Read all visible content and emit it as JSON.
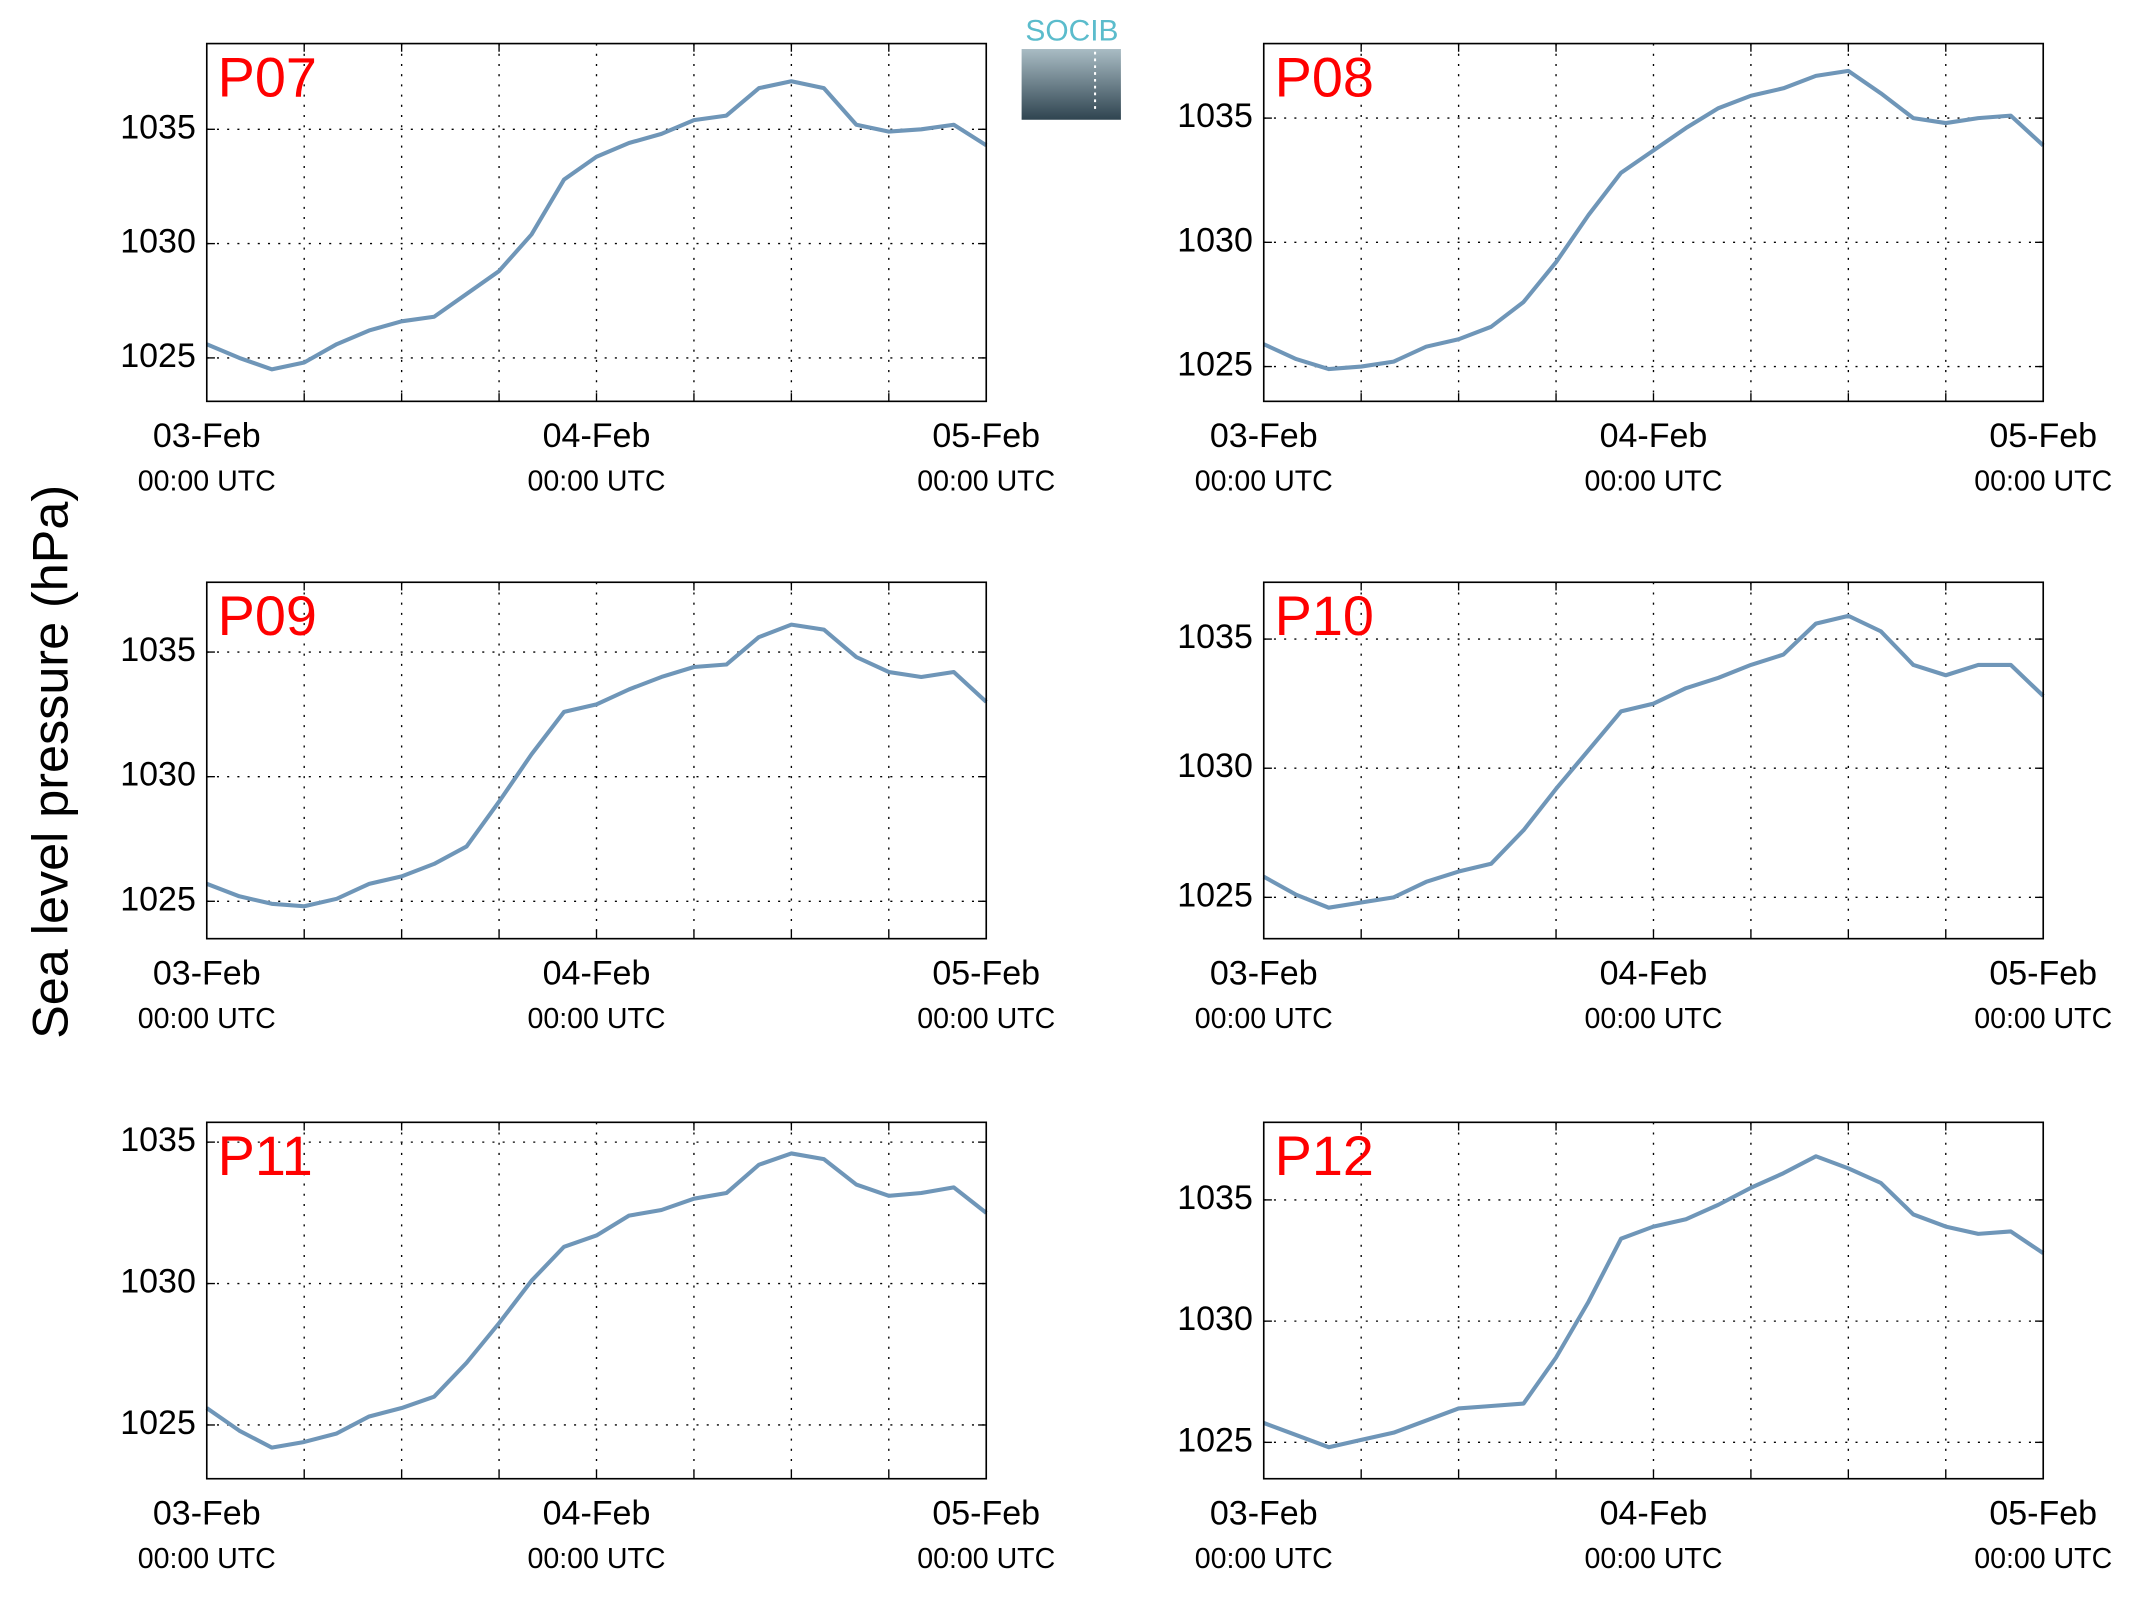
{
  "ylabel": "Sea level pressure (hPa)",
  "logo": "SOCIB",
  "chart_data": [
    {
      "type": "line",
      "title": "P07",
      "color": "#6f96b8",
      "x": [
        0,
        2,
        4,
        6,
        8,
        10,
        12,
        14,
        16,
        18,
        20,
        22,
        24,
        26,
        28,
        30,
        32,
        34,
        36,
        38,
        40,
        42,
        44,
        46,
        48
      ],
      "values": [
        1025.6,
        1025.0,
        1024.5,
        1024.8,
        1025.6,
        1026.2,
        1026.6,
        1026.8,
        1027.8,
        1028.8,
        1030.4,
        1032.8,
        1033.8,
        1034.4,
        1034.8,
        1035.4,
        1035.6,
        1036.8,
        1037.1,
        1036.8,
        1035.2,
        1034.9,
        1035.0,
        1035.2,
        1034.3
      ],
      "xlim": [
        0,
        48
      ],
      "ylim": [
        1023.1,
        1038.75
      ],
      "xticks": [
        {
          "value": 0,
          "label": [
            "03-Feb",
            "00:00 UTC"
          ]
        },
        {
          "value": 24,
          "label": [
            "04-Feb",
            "00:00 UTC"
          ]
        },
        {
          "value": 48,
          "label": [
            "05-Feb",
            "00:00 UTC"
          ]
        }
      ],
      "xminorticks": [
        6,
        12,
        18,
        30,
        36,
        42
      ],
      "yticks": [
        1025,
        1030,
        1035
      ],
      "grid": true
    },
    {
      "type": "line",
      "title": "P08",
      "color": "#6f96b8",
      "x": [
        0,
        2,
        4,
        6,
        8,
        10,
        12,
        14,
        16,
        18,
        20,
        22,
        24,
        26,
        28,
        30,
        32,
        34,
        36,
        38,
        40,
        42,
        44,
        46,
        48
      ],
      "values": [
        1025.9,
        1025.3,
        1024.9,
        1025.0,
        1025.2,
        1025.8,
        1026.1,
        1026.6,
        1027.6,
        1029.2,
        1031.1,
        1032.8,
        1033.7,
        1034.6,
        1035.4,
        1035.9,
        1036.2,
        1036.7,
        1036.9,
        1036.0,
        1035.0,
        1034.8,
        1035.0,
        1035.1,
        1033.9
      ],
      "xlim": [
        0,
        48
      ],
      "ylim": [
        1023.6,
        1038.0
      ],
      "xticks": [
        {
          "value": 0,
          "label": [
            "03-Feb",
            "00:00 UTC"
          ]
        },
        {
          "value": 24,
          "label": [
            "04-Feb",
            "00:00 UTC"
          ]
        },
        {
          "value": 48,
          "label": [
            "05-Feb",
            "00:00 UTC"
          ]
        }
      ],
      "xminorticks": [
        6,
        12,
        18,
        30,
        36,
        42
      ],
      "yticks": [
        1025,
        1030,
        1035
      ],
      "grid": true
    },
    {
      "type": "line",
      "title": "P09",
      "color": "#6f96b8",
      "x": [
        0,
        2,
        4,
        6,
        8,
        10,
        12,
        14,
        16,
        18,
        20,
        22,
        24,
        26,
        28,
        30,
        32,
        34,
        36,
        38,
        40,
        42,
        44,
        46,
        48
      ],
      "values": [
        1025.7,
        1025.2,
        1024.9,
        1024.8,
        1025.1,
        1025.7,
        1026.0,
        1026.5,
        1027.2,
        1029.0,
        1030.9,
        1032.6,
        1032.9,
        1033.5,
        1034.0,
        1034.4,
        1034.5,
        1035.6,
        1036.1,
        1035.9,
        1034.8,
        1034.2,
        1034.0,
        1034.2,
        1033.0
      ],
      "xlim": [
        0,
        48
      ],
      "ylim": [
        1023.5,
        1037.8
      ],
      "xticks": [
        {
          "value": 0,
          "label": [
            "03-Feb",
            "00:00 UTC"
          ]
        },
        {
          "value": 24,
          "label": [
            "04-Feb",
            "00:00 UTC"
          ]
        },
        {
          "value": 48,
          "label": [
            "05-Feb",
            "00:00 UTC"
          ]
        }
      ],
      "xminorticks": [
        6,
        12,
        18,
        30,
        36,
        42
      ],
      "yticks": [
        1025,
        1030,
        1035
      ],
      "grid": true
    },
    {
      "type": "line",
      "title": "P10",
      "color": "#6f96b8",
      "x": [
        0,
        2,
        4,
        6,
        8,
        10,
        12,
        14,
        16,
        18,
        20,
        22,
        24,
        26,
        28,
        30,
        32,
        34,
        36,
        38,
        40,
        42,
        44,
        46,
        48
      ],
      "values": [
        1025.8,
        1025.1,
        1024.6,
        1024.8,
        1025.0,
        1025.6,
        1026.0,
        1026.3,
        1027.6,
        1029.2,
        1030.7,
        1032.2,
        1032.5,
        1033.1,
        1033.5,
        1034.0,
        1034.4,
        1035.6,
        1035.9,
        1035.3,
        1034.0,
        1033.6,
        1034.0,
        1034.0,
        1032.8
      ],
      "xlim": [
        0,
        48
      ],
      "ylim": [
        1023.4,
        1037.2
      ],
      "xticks": [
        {
          "value": 0,
          "label": [
            "03-Feb",
            "00:00 UTC"
          ]
        },
        {
          "value": 24,
          "label": [
            "04-Feb",
            "00:00 UTC"
          ]
        },
        {
          "value": 48,
          "label": [
            "05-Feb",
            "00:00 UTC"
          ]
        }
      ],
      "xminorticks": [
        6,
        12,
        18,
        30,
        36,
        42
      ],
      "yticks": [
        1025,
        1030,
        1035
      ],
      "grid": true
    },
    {
      "type": "line",
      "title": "P11",
      "color": "#6f96b8",
      "x": [
        0,
        2,
        4,
        6,
        8,
        10,
        12,
        14,
        16,
        18,
        20,
        22,
        24,
        26,
        28,
        30,
        32,
        34,
        36,
        38,
        40,
        42,
        44,
        46,
        48
      ],
      "values": [
        1025.6,
        1024.8,
        1024.2,
        1024.4,
        1024.7,
        1025.3,
        1025.6,
        1026.0,
        1027.2,
        1028.6,
        1030.1,
        1031.3,
        1031.7,
        1032.4,
        1032.6,
        1033.0,
        1033.2,
        1034.2,
        1034.6,
        1034.4,
        1033.5,
        1033.1,
        1033.2,
        1033.4,
        1032.5
      ],
      "xlim": [
        0,
        48
      ],
      "ylim": [
        1023.1,
        1035.7
      ],
      "xticks": [
        {
          "value": 0,
          "label": [
            "03-Feb",
            "00:00 UTC"
          ]
        },
        {
          "value": 24,
          "label": [
            "04-Feb",
            "00:00 UTC"
          ]
        },
        {
          "value": 48,
          "label": [
            "05-Feb",
            "00:00 UTC"
          ]
        }
      ],
      "xminorticks": [
        6,
        12,
        18,
        30,
        36,
        42
      ],
      "yticks": [
        1025,
        1030,
        1035
      ],
      "grid": true
    },
    {
      "type": "line",
      "title": "P12",
      "color": "#6f96b8",
      "x": [
        0,
        2,
        4,
        6,
        8,
        10,
        12,
        14,
        16,
        18,
        20,
        22,
        24,
        26,
        28,
        30,
        32,
        34,
        36,
        38,
        40,
        42,
        44,
        46,
        48
      ],
      "values": [
        1025.8,
        1025.3,
        1024.8,
        1025.1,
        1025.4,
        1025.9,
        1026.4,
        1026.5,
        1026.6,
        1028.5,
        1030.8,
        1033.4,
        1033.9,
        1034.2,
        1034.8,
        1035.5,
        1036.1,
        1036.8,
        1036.3,
        1035.7,
        1034.4,
        1033.9,
        1033.6,
        1033.7,
        1032.8
      ],
      "xlim": [
        0,
        48
      ],
      "ylim": [
        1023.5,
        1038.2
      ],
      "xticks": [
        {
          "value": 0,
          "label": [
            "03-Feb",
            "00:00 UTC"
          ]
        },
        {
          "value": 24,
          "label": [
            "04-Feb",
            "00:00 UTC"
          ]
        },
        {
          "value": 48,
          "label": [
            "05-Feb",
            "00:00 UTC"
          ]
        }
      ],
      "xminorticks": [
        6,
        12,
        18,
        30,
        36,
        42
      ],
      "yticks": [
        1025,
        1030,
        1035
      ],
      "grid": true
    }
  ]
}
